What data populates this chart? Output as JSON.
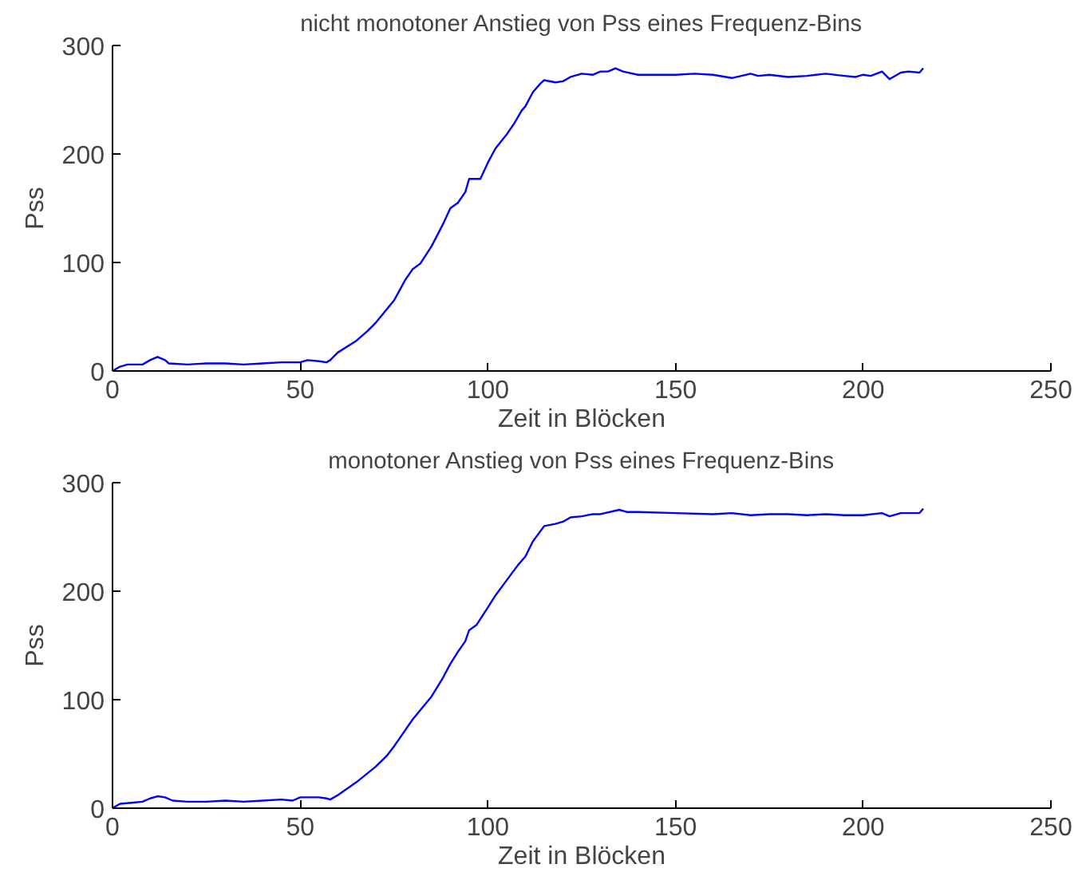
{
  "chart_data": [
    {
      "type": "line",
      "title": "nicht monotoner Anstieg von Pss eines Frequenz-Bins",
      "xlabel": "Zeit in Blöcken",
      "ylabel": "Pss",
      "xlim": [
        0,
        250
      ],
      "ylim": [
        0,
        300
      ],
      "xticks": [
        0,
        50,
        100,
        150,
        200,
        250
      ],
      "yticks": [
        0,
        100,
        200,
        300
      ],
      "grid": false,
      "series": [
        {
          "color": "#0000ff",
          "x": [
            0,
            2,
            4,
            8,
            10,
            12,
            14,
            15,
            20,
            25,
            30,
            35,
            40,
            45,
            50,
            52,
            55,
            57,
            58,
            60,
            65,
            68,
            70,
            75,
            78,
            80,
            82,
            85,
            88,
            90,
            92,
            94,
            95,
            98,
            100,
            102,
            105,
            107,
            109,
            110,
            112,
            114,
            115,
            118,
            120,
            122,
            125,
            128,
            130,
            132,
            134,
            136,
            140,
            145,
            150,
            155,
            160,
            165,
            170,
            172,
            175,
            180,
            185,
            190,
            195,
            198,
            200,
            202,
            205,
            207,
            208,
            210,
            212,
            215,
            216
          ],
          "values": [
            0,
            4,
            6,
            6,
            10,
            13,
            10,
            7,
            6,
            7,
            7,
            6,
            7,
            8,
            8,
            10,
            9,
            8,
            10,
            17,
            28,
            37,
            44,
            65,
            84,
            94,
            99,
            115,
            135,
            150,
            155,
            165,
            177,
            177,
            192,
            205,
            218,
            228,
            240,
            244,
            257,
            265,
            268,
            266,
            267,
            271,
            274,
            273,
            276,
            276,
            279,
            276,
            273,
            273,
            273,
            274,
            273,
            270,
            274,
            272,
            273,
            271,
            272,
            274,
            272,
            271,
            273,
            272,
            276,
            269,
            271,
            275,
            276,
            275,
            279
          ]
        }
      ]
    },
    {
      "type": "line",
      "title": "monotoner Anstieg von Pss eines Frequenz-Bins",
      "xlabel": "Zeit in Blöcken",
      "ylabel": "Pss",
      "xlim": [
        0,
        250
      ],
      "ylim": [
        0,
        300
      ],
      "xticks": [
        0,
        50,
        100,
        150,
        200,
        250
      ],
      "yticks": [
        0,
        100,
        200,
        300
      ],
      "grid": false,
      "series": [
        {
          "color": "#0000ff",
          "x": [
            0,
            2,
            5,
            8,
            10,
            12,
            14,
            16,
            20,
            25,
            30,
            35,
            40,
            45,
            48,
            50,
            55,
            57,
            58,
            60,
            65,
            70,
            73,
            75,
            78,
            80,
            85,
            88,
            90,
            92,
            94,
            95,
            97,
            100,
            102,
            105,
            108,
            110,
            112,
            115,
            118,
            120,
            122,
            125,
            128,
            130,
            135,
            137,
            140,
            150,
            160,
            165,
            170,
            175,
            180,
            185,
            190,
            195,
            200,
            205,
            207,
            208,
            210,
            215,
            216
          ],
          "values": [
            0,
            4,
            5,
            6,
            9,
            11,
            10,
            7,
            6,
            6,
            7,
            6,
            7,
            8,
            7,
            10,
            10,
            9,
            8,
            12,
            24,
            38,
            48,
            57,
            72,
            82,
            103,
            120,
            133,
            144,
            154,
            164,
            169,
            185,
            196,
            210,
            224,
            232,
            246,
            260,
            262,
            264,
            268,
            269,
            271,
            271,
            275,
            273,
            273,
            272,
            271,
            272,
            270,
            271,
            271,
            270,
            271,
            270,
            270,
            272,
            269,
            270,
            272,
            272,
            276
          ]
        }
      ]
    }
  ]
}
